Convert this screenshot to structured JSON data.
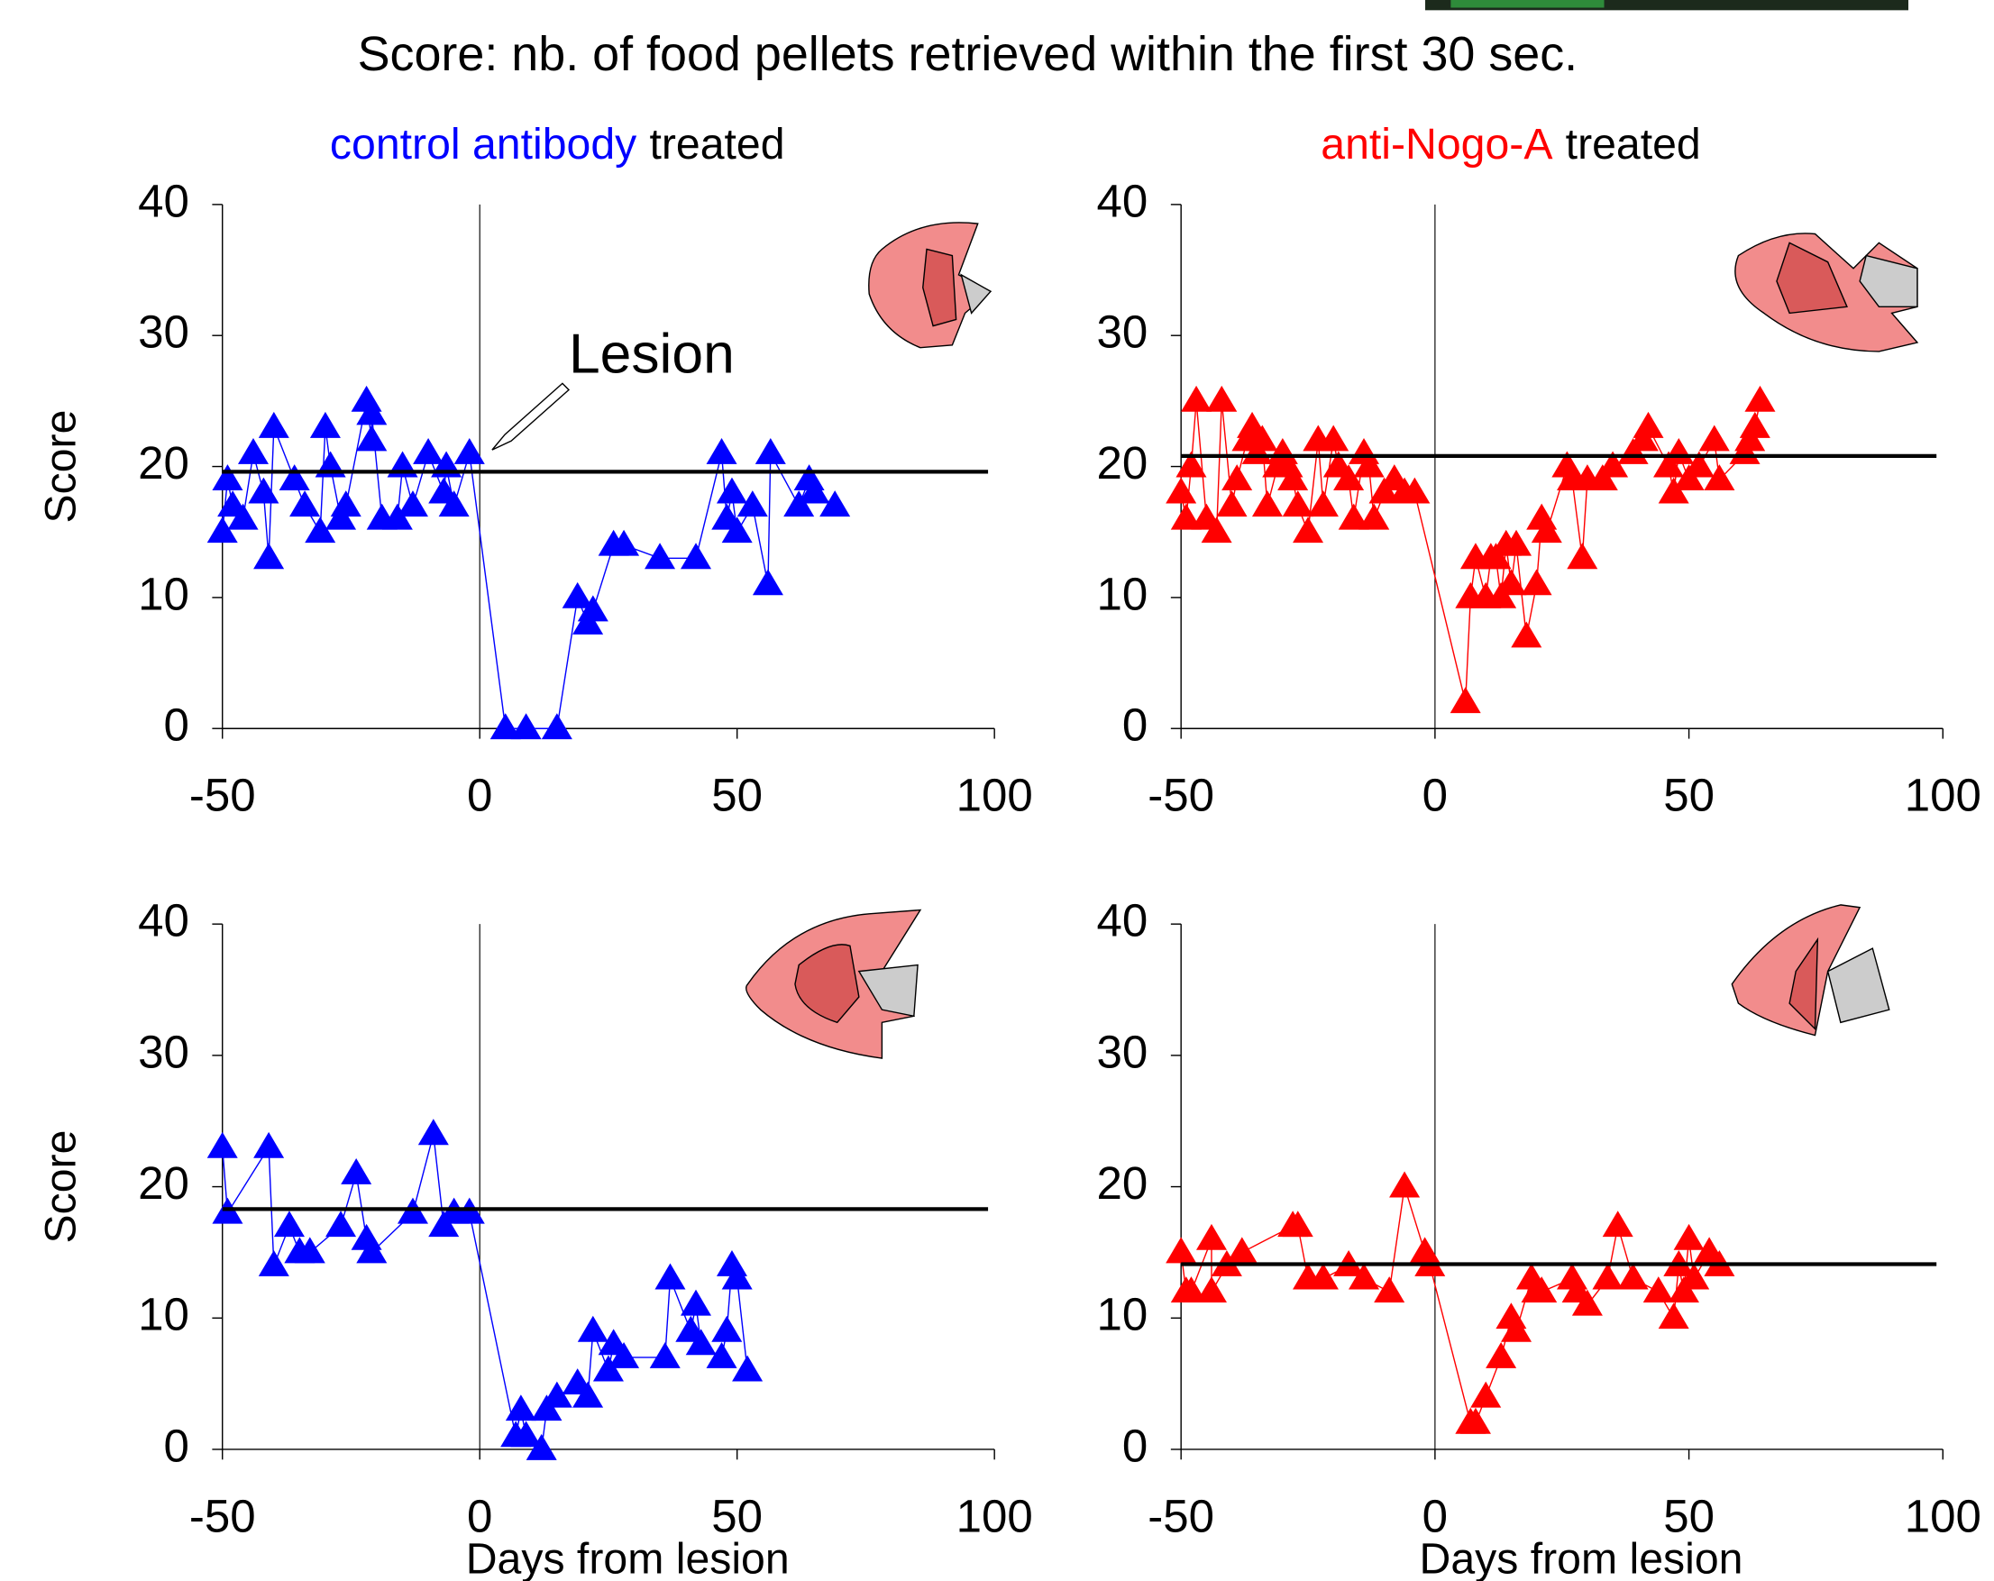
{
  "page_title": "Score: nb. of food pellets retrieved within the first 30 sec.",
  "chart_data": [
    {
      "type": "line",
      "title": [
        "control antibody",
        "treated"
      ],
      "title_colors": [
        "#0000ff",
        "#000000"
      ],
      "ylabel": "Score",
      "annotation": "Lesion",
      "xlim": [
        -50,
        100
      ],
      "xticks": [
        -50,
        0,
        50,
        100
      ],
      "ylim": [
        0,
        40
      ],
      "yticks": [
        0,
        10,
        20,
        30,
        40
      ],
      "mean": 19.6,
      "mean_color": "#000000",
      "series": [
        {
          "color": "#0000ff",
          "x": [
            -50,
            -49,
            -48,
            -46,
            -44,
            -42,
            -41,
            -40,
            -36,
            -34,
            -31,
            -30,
            -29,
            -27,
            -26,
            -22,
            -21,
            -21,
            -19,
            -16,
            -15,
            -13,
            -10,
            -7,
            -6.5,
            -5,
            -2,
            5,
            9,
            15,
            19,
            21,
            22,
            26,
            28,
            35,
            42,
            47,
            48,
            49,
            50,
            53,
            56,
            56.5,
            62,
            64,
            65,
            69
          ],
          "values": [
            15,
            19,
            17,
            16,
            21,
            18,
            13,
            23,
            19,
            17,
            15,
            23,
            20,
            16,
            17,
            25,
            22,
            24,
            16,
            16,
            20,
            17,
            21,
            18,
            20,
            17,
            21,
            0,
            0,
            0,
            10,
            8,
            9,
            14,
            14,
            13,
            13,
            21,
            16,
            18,
            15,
            17,
            11,
            21,
            17,
            19,
            18,
            17
          ]
        }
      ]
    },
    {
      "type": "line",
      "title": [
        "anti-Nogo-A",
        "treated"
      ],
      "title_colors": [
        "#ff0000",
        "#000000"
      ],
      "xlim": [
        -50,
        100
      ],
      "xticks": [
        -50,
        0,
        50,
        100
      ],
      "ylim": [
        0,
        40
      ],
      "yticks": [
        0,
        10,
        20,
        30,
        40
      ],
      "mean": 20.8,
      "mean_color": "#000000",
      "series": [
        {
          "color": "#ff0000",
          "x": [
            -50,
            -49,
            -48,
            -47,
            -45,
            -43,
            -42,
            -40,
            -39,
            -37,
            -36,
            -35,
            -34,
            -33,
            -31,
            -30,
            -29,
            -28,
            -27,
            -25,
            -23,
            -22,
            -20,
            -19,
            -17,
            -16,
            -14,
            -13,
            -12,
            -10,
            -8,
            -6,
            -4,
            6,
            7,
            8,
            10,
            11,
            12,
            13,
            14,
            15,
            16,
            18,
            20,
            21,
            22,
            26,
            27,
            29,
            30,
            33,
            35,
            39,
            41,
            42,
            46,
            47,
            48,
            50,
            52,
            55,
            56,
            61,
            62,
            63,
            64
          ],
          "values": [
            18,
            16,
            20,
            25,
            16,
            15,
            25,
            17,
            19,
            22,
            23,
            21,
            22,
            17,
            20,
            21,
            20,
            19,
            17,
            15,
            22,
            17,
            22,
            20,
            19,
            16,
            21,
            20,
            16,
            18,
            19,
            18,
            18,
            2,
            10,
            13,
            10,
            13,
            13,
            10,
            14,
            11,
            14,
            7,
            11,
            16,
            15,
            20,
            19,
            13,
            19,
            19,
            20,
            21,
            22,
            23,
            20,
            18,
            21,
            19,
            20,
            22,
            19,
            21,
            22,
            23,
            25
          ]
        }
      ]
    },
    {
      "type": "line",
      "ylabel": "Score",
      "xlabel": "Days from lesion",
      "xlim": [
        -50,
        100
      ],
      "xticks": [
        -50,
        0,
        50,
        100
      ],
      "ylim": [
        0,
        40
      ],
      "yticks": [
        0,
        10,
        20,
        30,
        40
      ],
      "mean": 18.3,
      "mean_color": "#000000",
      "series": [
        {
          "color": "#0000ff",
          "x": [
            -50,
            -49,
            -41,
            -40,
            -37,
            -35,
            -33,
            -27,
            -24,
            -22,
            -21,
            -13,
            -9,
            -7,
            -5,
            -2,
            7,
            8,
            9,
            12,
            13,
            15,
            19,
            21,
            22,
            25,
            26,
            28,
            36,
            37,
            41,
            42,
            43,
            47,
            48,
            49,
            50,
            52
          ],
          "values": [
            23,
            18,
            23,
            14,
            17,
            15,
            15,
            17,
            21,
            16,
            15,
            18,
            24,
            17,
            18,
            18,
            1,
            3,
            1,
            0,
            3,
            4,
            5,
            4,
            9,
            6,
            8,
            7,
            7,
            13,
            9,
            11,
            8,
            7,
            9,
            14,
            13,
            6
          ]
        }
      ]
    },
    {
      "type": "line",
      "xlabel": "Days from lesion",
      "xlim": [
        -50,
        100
      ],
      "xticks": [
        -50,
        0,
        50,
        100
      ],
      "ylim": [
        0,
        40
      ],
      "yticks": [
        0,
        10,
        20,
        30,
        40
      ],
      "mean": 14.1,
      "mean_color": "#000000",
      "series": [
        {
          "color": "#ff0000",
          "x": [
            -50,
            -49,
            -48,
            -44,
            -44,
            -41,
            -38,
            -28,
            -27,
            -25,
            -22,
            -17,
            -14,
            -9,
            -6,
            -2,
            -1,
            7,
            8,
            10,
            13,
            15,
            16,
            19,
            20,
            21,
            27,
            28,
            30,
            34,
            36,
            39,
            44,
            47,
            48,
            49,
            50,
            51,
            54,
            56
          ],
          "values": [
            15,
            12,
            12,
            16,
            12,
            14,
            15,
            17,
            17,
            13,
            13,
            14,
            13,
            12,
            20,
            15,
            14,
            2,
            2,
            4,
            7,
            10,
            9,
            13,
            12,
            12,
            13,
            12,
            11,
            13,
            17,
            13,
            12,
            10,
            14,
            12,
            16,
            13,
            15,
            14
          ]
        }
      ]
    }
  ]
}
